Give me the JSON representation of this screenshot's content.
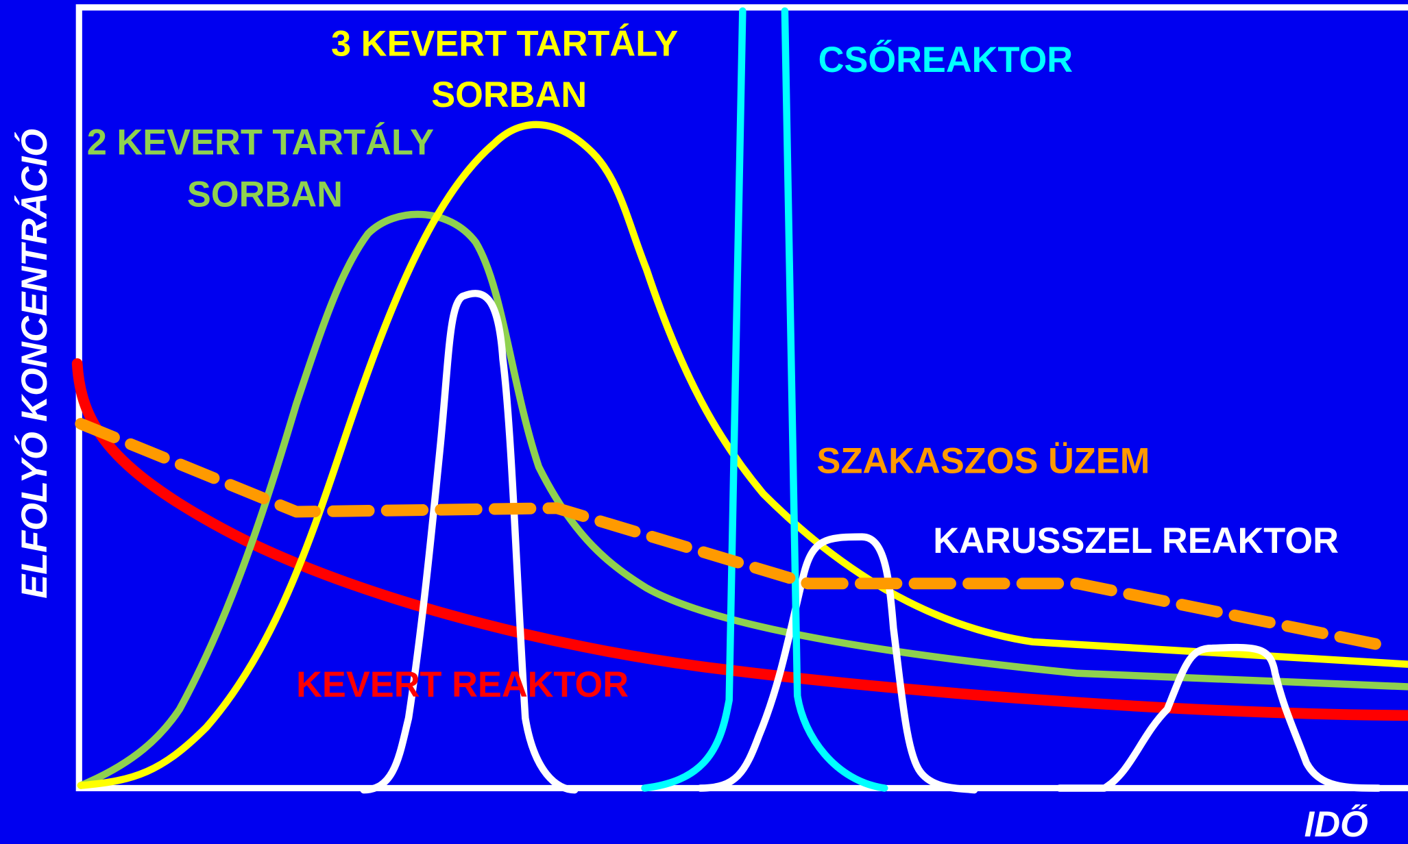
{
  "labels": {
    "three_tanks": [
      "3 KEVERT TARTÁLY",
      "SORBAN"
    ],
    "plug_flow": "CSŐREAKTOR",
    "two_tanks": [
      "2 KEVERT TARTÁLY",
      "SORBAN"
    ],
    "batch": "SZAKASZOS ÜZEM",
    "carousel": "KARUSSZEL REAKTOR",
    "mixed": "KEVERT REAKTOR",
    "y_axis": "ELFOLYÓ KONCENTRÁCIÓ",
    "x_axis": "IDŐ"
  }
}
